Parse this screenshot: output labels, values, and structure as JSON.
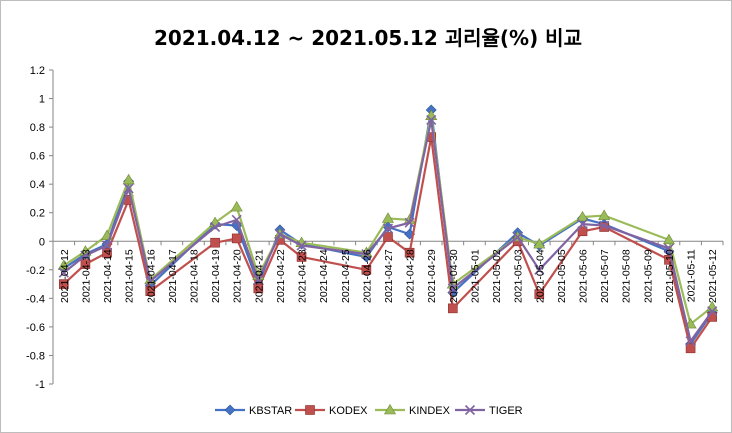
{
  "chart_data": {
    "type": "line",
    "title": "2021.04.12 ~ 2021.05.12 괴리율(%) 비교",
    "xlabel": "",
    "ylabel": "",
    "ylim": [
      -1,
      1.2
    ],
    "yticks": [
      1.2,
      1,
      0.8,
      0.6,
      0.4,
      0.2,
      0,
      -0.2,
      -0.4,
      -0.6,
      -0.8,
      -1
    ],
    "ytick_labels": [
      "1.2",
      "1",
      "0.8",
      "0.6",
      "0.4",
      "0.2",
      "0",
      "-0.2",
      "-0.4",
      "-0.6",
      "-0.8",
      "-1"
    ],
    "grid": false,
    "legend_position": "bottom",
    "categories": [
      "2021-04-12",
      "2021-04-13",
      "2021-04-14",
      "2021-04-15",
      "2021-04-16",
      "2021-04-17",
      "2021-04-18",
      "2021-04-19",
      "2021-04-20",
      "2021-04-21",
      "2021-04-22",
      "2021-04-23",
      "2021-04-24",
      "2021-04-25",
      "2021-04-26",
      "2021-04-27",
      "2021-04-28",
      "2021-04-29",
      "2021-04-30",
      "2021-05-01",
      "2021-05-02",
      "2021-05-03",
      "2021-05-04",
      "2021-05-05",
      "2021-05-06",
      "2021-05-07",
      "2021-05-08",
      "2021-05-09",
      "2021-05-10",
      "2021-05-11",
      "2021-05-12"
    ],
    "series": [
      {
        "name": "KBSTAR",
        "color": "#4472C4",
        "marker": "diamond",
        "values": [
          -0.19,
          -0.09,
          -0.02,
          0.42,
          -0.31,
          null,
          null,
          0.12,
          0.11,
          -0.3,
          0.08,
          -0.02,
          null,
          null,
          -0.11,
          0.1,
          0.05,
          0.92,
          -0.36,
          null,
          null,
          0.06,
          -0.03,
          null,
          0.16,
          0.12,
          null,
          null,
          -0.07,
          -0.72,
          -0.5
        ]
      },
      {
        "name": "KODEX",
        "color": "#C0504D",
        "marker": "square",
        "values": [
          -0.3,
          -0.16,
          -0.08,
          0.29,
          -0.35,
          null,
          null,
          -0.01,
          0.02,
          -0.33,
          0.01,
          -0.11,
          null,
          null,
          -0.2,
          0.03,
          -0.08,
          0.73,
          -0.47,
          null,
          null,
          0.0,
          -0.37,
          null,
          0.07,
          0.1,
          null,
          null,
          -0.13,
          -0.75,
          -0.53
        ]
      },
      {
        "name": "KINDEX",
        "color": "#9BBB59",
        "marker": "triangle",
        "values": [
          -0.17,
          -0.07,
          0.04,
          0.43,
          -0.27,
          null,
          null,
          0.13,
          0.24,
          -0.24,
          0.05,
          -0.01,
          null,
          null,
          -0.08,
          0.16,
          0.15,
          0.88,
          -0.3,
          null,
          null,
          0.03,
          -0.02,
          null,
          0.17,
          0.18,
          null,
          null,
          0.01,
          -0.58,
          -0.46
        ]
      },
      {
        "name": "TIGER",
        "color": "#8064A2",
        "marker": "x",
        "values": [
          -0.22,
          -0.1,
          -0.03,
          0.37,
          -0.28,
          null,
          null,
          0.1,
          0.15,
          -0.27,
          0.05,
          -0.03,
          null,
          null,
          -0.09,
          0.09,
          0.13,
          0.85,
          -0.33,
          null,
          null,
          0.03,
          -0.2,
          null,
          0.12,
          0.11,
          null,
          null,
          -0.05,
          -0.7,
          -0.49
        ]
      }
    ]
  }
}
